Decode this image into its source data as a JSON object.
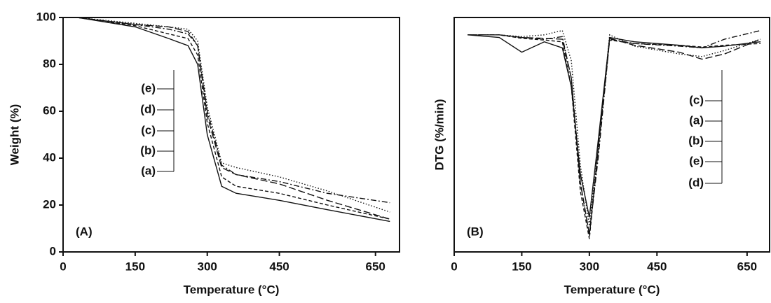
{
  "chart_data": [
    {
      "type": "line",
      "panel_label": "(A)",
      "xlabel": "Temperature (°C)",
      "ylabel": "Weight (%)",
      "xlim": [
        0,
        700
      ],
      "xticks": [
        0,
        150,
        300,
        450,
        650
      ],
      "ylim": [
        0,
        100
      ],
      "yticks": [
        0,
        20,
        40,
        60,
        80,
        100
      ],
      "x": [
        30,
        150,
        220,
        260,
        280,
        300,
        330,
        360,
        450,
        550,
        680
      ],
      "series": [
        {
          "name": "(e)",
          "color": "#111111",
          "style": "dotted",
          "values": [
            100,
            97.5,
            96,
            95,
            90,
            62,
            38,
            36,
            32,
            26,
            17
          ]
        },
        {
          "name": "(d)",
          "color": "#111111",
          "style": "longdash",
          "values": [
            100,
            97,
            96,
            94,
            88,
            58,
            36,
            33,
            29,
            22,
            14
          ]
        },
        {
          "name": "(c)",
          "color": "#111111",
          "style": "dashdot",
          "values": [
            100,
            97,
            95,
            93,
            88,
            60,
            37,
            33,
            30,
            25,
            21
          ]
        },
        {
          "name": "(b)",
          "color": "#111111",
          "style": "dashed",
          "values": [
            100,
            96.5,
            93,
            91,
            84,
            55,
            32,
            28,
            25,
            20,
            14
          ]
        },
        {
          "name": "(a)",
          "color": "#111111",
          "style": "solid",
          "values": [
            100,
            96,
            91,
            88,
            80,
            50,
            28,
            25,
            22,
            18,
            13
          ]
        }
      ]
    },
    {
      "type": "line",
      "panel_label": "(B)",
      "xlabel": "Temperature (°C)",
      "ylabel": "DTG (%/min)",
      "xlim": [
        0,
        700
      ],
      "xticks": [
        0,
        150,
        300,
        450,
        650
      ],
      "ylim": [
        -25,
        2
      ],
      "x": [
        30,
        100,
        150,
        200,
        240,
        260,
        280,
        300,
        320,
        345,
        400,
        500,
        550,
        600,
        680
      ],
      "series": [
        {
          "name": "(c)",
          "color": "#111111",
          "style": "dashdot",
          "values": [
            0,
            0,
            -0.3,
            -0.5,
            -0.2,
            -5,
            -17,
            -23,
            -14,
            -0.5,
            -1,
            -1.3,
            -1.5,
            -0.5,
            0.5
          ]
        },
        {
          "name": "(a)",
          "color": "#111111",
          "style": "solid",
          "values": [
            0,
            -0.3,
            -2,
            -0.8,
            -1.5,
            -6,
            -16,
            -21,
            -12,
            -0.3,
            -0.8,
            -1.2,
            -1.5,
            -1.3,
            -0.8
          ]
        },
        {
          "name": "(b)",
          "color": "#111111",
          "style": "dashed",
          "values": [
            0,
            0,
            -0.4,
            -0.6,
            -0.8,
            -6,
            -18,
            -23.5,
            -13,
            -0.6,
            -1,
            -1.2,
            -1.4,
            -1.2,
            -1
          ]
        },
        {
          "name": "(e)",
          "color": "#111111",
          "style": "dotted",
          "values": [
            0,
            0,
            -0.2,
            0,
            0.5,
            -3,
            -15,
            -22,
            -13,
            0,
            -1.3,
            -2.2,
            -2.5,
            -1.8,
            -0.5
          ]
        },
        {
          "name": "(d)",
          "color": "#111111",
          "style": "longdash",
          "values": [
            0,
            0,
            -0.3,
            -0.4,
            -0.5,
            -5,
            -17,
            -23,
            -13,
            -0.4,
            -1.2,
            -2,
            -2.8,
            -2.2,
            -0.5
          ]
        }
      ]
    }
  ]
}
